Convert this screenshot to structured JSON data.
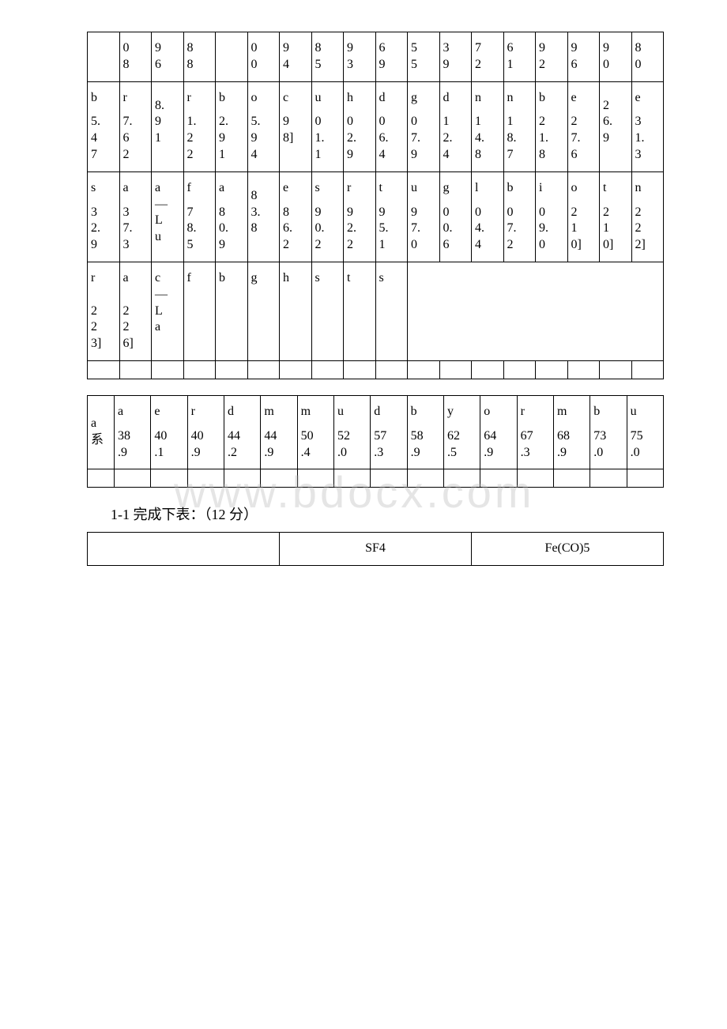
{
  "watermark": "www.bdocx.com",
  "table1": {
    "row0": [
      "",
      "0\n8",
      "9\n6",
      "8\n8",
      "",
      "0\n0",
      "9\n4",
      "8\n5",
      "9\n3",
      "6\n9",
      "5\n5",
      "3\n9",
      "7\n2",
      "6\n1",
      "9\n2",
      "9\n6",
      "9\n0",
      "8\n0"
    ],
    "row1": {
      "syms": [
        "b",
        "r",
        "",
        "r",
        "b",
        "o",
        "c",
        "u",
        "h",
        "d",
        "g",
        "d",
        "n",
        "n",
        "b",
        "e",
        "",
        "e"
      ],
      "vals": [
        "5.\n4\n7",
        "7.\n6\n2",
        "8.\n9\n1",
        "1.\n2\n2",
        "2.\n9\n1",
        "5.\n9\n4",
        "9\n8]",
        "0\n1.\n1",
        "0\n2.\n9",
        "0\n6.\n4",
        "0\n7.\n9",
        "1\n2.\n4",
        "1\n4.\n8",
        "1\n8.\n7",
        "2\n1.\n8",
        "2\n7.\n6",
        "2\n6.\n9",
        "3\n1.\n3"
      ]
    },
    "row2": {
      "syms": [
        "s",
        "a",
        "a\n—\nL\nu",
        "f",
        "a",
        "",
        "e",
        "s",
        "r",
        "t",
        "u",
        "g",
        "l",
        "b",
        "i",
        "o",
        "t",
        "n"
      ],
      "vals": [
        "3\n2.\n9",
        "3\n7.\n3",
        "",
        "7\n8.\n5",
        "8\n0.\n9",
        "8\n3.\n8",
        "8\n6.\n2",
        "9\n0.\n2",
        "9\n2.\n2",
        "9\n5.\n1",
        "9\n7.\n0",
        "0\n0.\n6",
        "0\n4.\n4",
        "0\n7.\n2",
        "0\n9.\n0",
        "2\n1\n0]",
        "2\n1\n0]",
        "2\n2\n2]"
      ]
    },
    "row3": {
      "cells": [
        "r\n\n2\n2\n3]",
        "a\n\n2\n2\n6]",
        "c\n—\nL\na",
        "f",
        "b",
        "g",
        "h",
        "s",
        "t",
        "s"
      ],
      "colspan_last": 9
    }
  },
  "table2": {
    "header_label": "a\n系",
    "row1_syms": [
      "a",
      "e",
      "r",
      "d",
      "m",
      "m",
      "u",
      "d",
      "b",
      "y",
      "o",
      "r",
      "m",
      "b",
      "u"
    ],
    "row1_vals": [
      "38\n.9",
      "40\n.1",
      "40\n.9",
      "44\n.2",
      "44\n.9",
      "50\n.4",
      "52\n.0",
      "57\n.3",
      "58\n.9",
      "62\n.5",
      "64\n.9",
      "67\n.3",
      "68\n.9",
      "73\n.0",
      "75\n.0"
    ]
  },
  "question": "1-1 完成下表：（12 分）",
  "table3": {
    "headers": [
      "",
      "SF4",
      "Fe(CO)5"
    ]
  },
  "colors": {
    "border": "#000000",
    "text": "#000000",
    "background": "#ffffff",
    "watermark": "rgba(180,180,180,0.35)"
  }
}
